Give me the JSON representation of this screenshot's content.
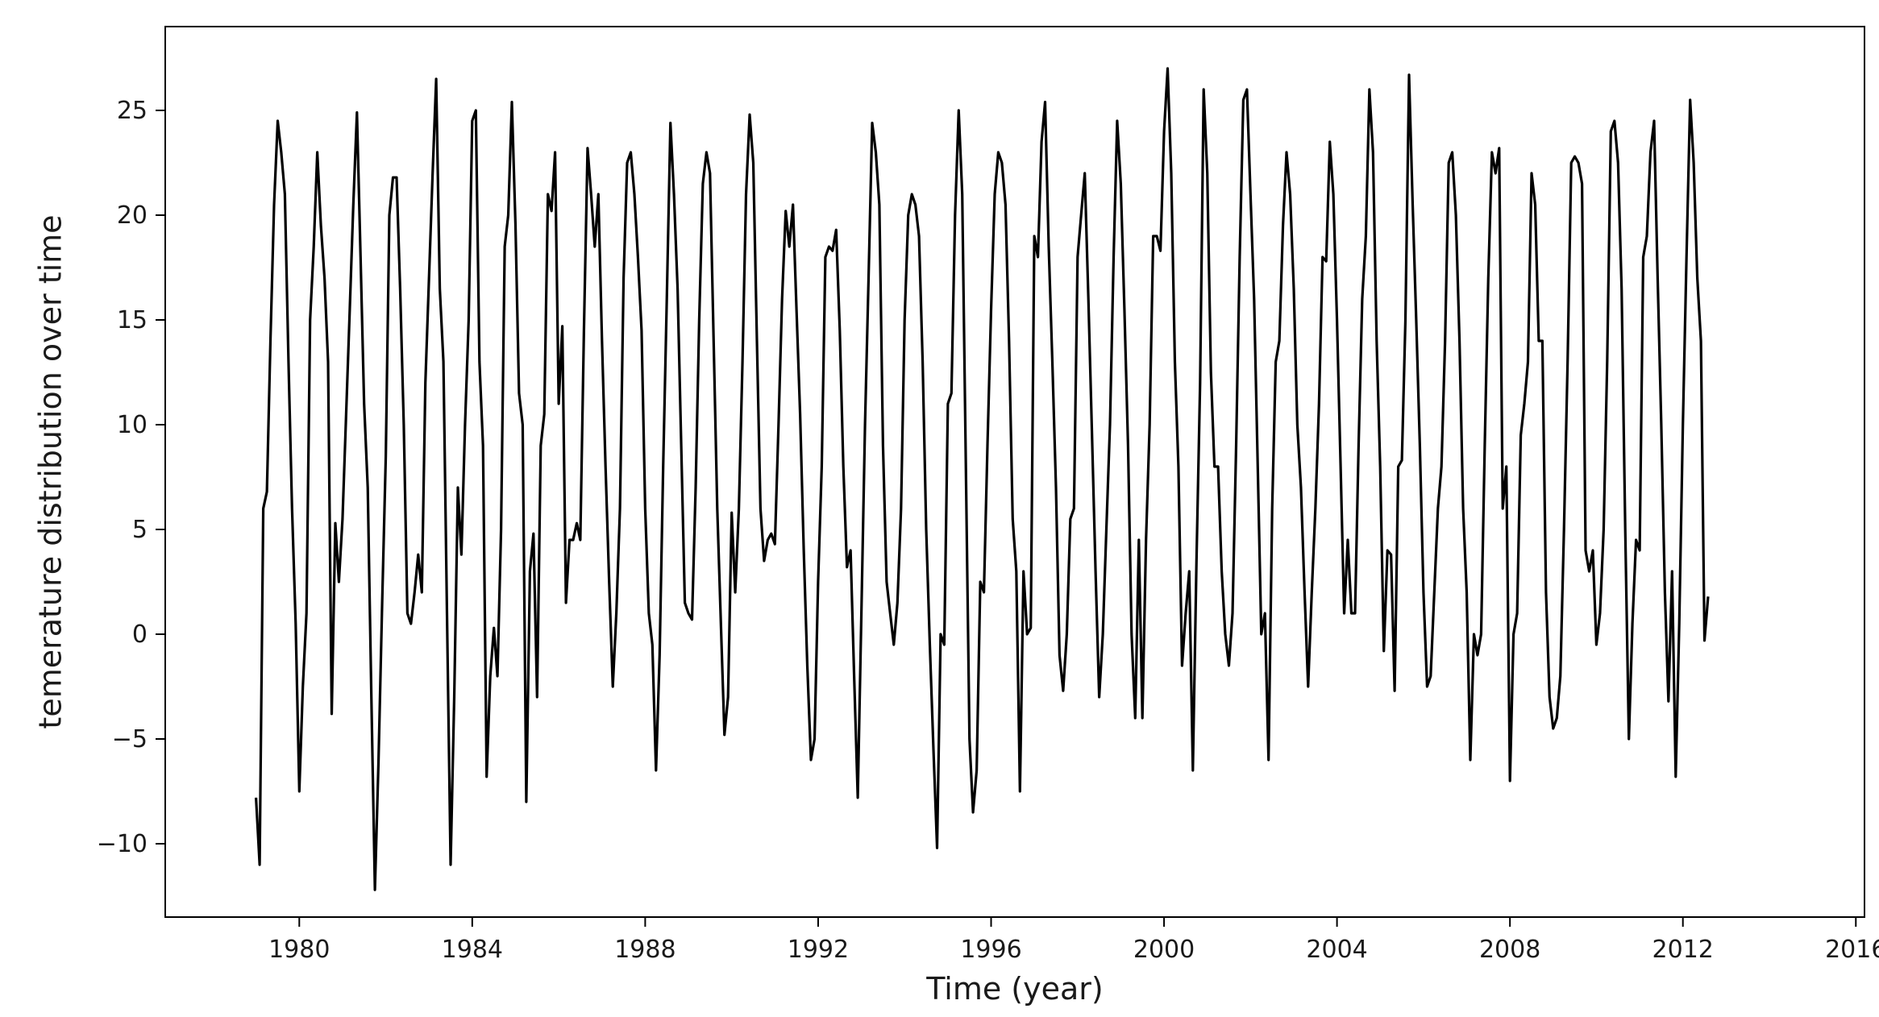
{
  "chart_data": {
    "type": "line",
    "title": "",
    "xlabel": "Time (year)",
    "ylabel": "temerature distribution over time",
    "xlim": [
      1976.9,
      2016.2
    ],
    "ylim": [
      -13.5,
      29.0
    ],
    "x_ticks": [
      1980,
      1984,
      1988,
      1992,
      1996,
      2000,
      2004,
      2008,
      2012,
      2016
    ],
    "x_tick_labels": [
      "1980",
      "1984",
      "1988",
      "1992",
      "1996",
      "2000",
      "2004",
      "2008",
      "2012",
      "2016"
    ],
    "y_ticks": [
      -10,
      -5,
      0,
      5,
      10,
      15,
      20,
      25
    ],
    "y_tick_labels": [
      "−10",
      "−5",
      "0",
      "5",
      "10",
      "15",
      "20",
      "25"
    ],
    "grid": false,
    "line_color": "#000000",
    "x_start": 1979.0,
    "x_step_months": 1,
    "series": [
      {
        "values": [
          -7.8,
          -11.0,
          6.0,
          6.8,
          14.0,
          20.5,
          24.5,
          23.0,
          21.0,
          13.0,
          6.0,
          0.5,
          -7.5,
          -2.5,
          1.0,
          15.0,
          18.5,
          23.0,
          19.5,
          17.0,
          13.0,
          -3.8,
          5.3,
          2.5,
          5.5,
          10.5,
          15.5,
          20.5,
          24.9,
          18.0,
          11.0,
          7.0,
          -3.0,
          -12.2,
          -6.0,
          1.5,
          8.5,
          20.0,
          21.8,
          21.8,
          16.5,
          10.0,
          1.0,
          0.5,
          2.0,
          3.8,
          2.0,
          12.0,
          17.0,
          22.0,
          26.5,
          16.5,
          13.0,
          1.0,
          -11.0,
          -3.0,
          7.0,
          3.8,
          10.0,
          15.0,
          24.5,
          25.0,
          13.0,
          9.0,
          -6.8,
          -2.0,
          0.3,
          -2.0,
          5.0,
          18.5,
          20.0,
          25.4,
          19.5,
          11.5,
          10.0,
          -8.0,
          3.0,
          4.8,
          -3.0,
          9.0,
          10.5,
          21.0,
          20.2,
          23.0,
          11.0,
          14.7,
          1.5,
          4.5,
          4.5,
          5.3,
          4.5,
          14.5,
          23.2,
          21.0,
          18.5,
          21.0,
          14.0,
          8.0,
          2.5,
          -2.5,
          1.0,
          6.0,
          17.0,
          22.5,
          23.0,
          21.0,
          18.0,
          14.5,
          6.0,
          1.0,
          -0.5,
          -6.5,
          -1.0,
          8.0,
          16.0,
          24.4,
          21.0,
          16.5,
          9.0,
          1.5,
          1.0,
          0.7,
          7.0,
          15.0,
          21.5,
          23.0,
          22.0,
          14.0,
          6.0,
          0.5,
          -4.8,
          -3.0,
          5.8,
          2.0,
          6.0,
          13.0,
          21.0,
          24.8,
          22.5,
          14.0,
          6.0,
          3.5,
          4.5,
          4.8,
          4.3,
          10.0,
          16.0,
          20.2,
          18.5,
          20.5,
          15.5,
          10.5,
          4.0,
          -1.5,
          -6.0,
          -5.0,
          2.5,
          8.0,
          18.0,
          18.5,
          18.3,
          19.3,
          14.5,
          8.0,
          3.2,
          4.0,
          -2.0,
          -7.8,
          1.0,
          10.0,
          17.0,
          24.4,
          23.0,
          20.5,
          9.0,
          2.5,
          1.0,
          -0.5,
          1.5,
          6.0,
          15.0,
          20.0,
          21.0,
          20.5,
          19.0,
          13.0,
          5.0,
          -0.5,
          -5.5,
          -10.2,
          0.0,
          -0.5,
          11.0,
          11.5,
          20.0,
          25.0,
          21.0,
          8.0,
          -5.0,
          -8.5,
          -6.5,
          2.5,
          2.0,
          9.0,
          15.5,
          21.0,
          23.0,
          22.5,
          20.5,
          14.0,
          5.5,
          3.0,
          -7.5,
          3.0,
          0.0,
          0.3,
          19.0,
          18.0,
          23.5,
          25.4,
          18.5,
          13.0,
          7.0,
          -1.0,
          -2.7,
          0.0,
          5.5,
          6.0,
          18.0,
          20.0,
          22.0,
          16.0,
          9.5,
          3.0,
          -3.0,
          0.0,
          5.0,
          10.0,
          18.0,
          24.5,
          21.5,
          15.5,
          9.0,
          0.0,
          -4.0,
          4.5,
          -4.0,
          4.5,
          10.0,
          19.0,
          19.0,
          18.3,
          24.0,
          27.0,
          22.0,
          13.0,
          8.0,
          -1.5,
          1.0,
          3.0,
          -6.5,
          3.5,
          12.0,
          26.0,
          22.0,
          12.5,
          8.0,
          8.0,
          3.0,
          0.0,
          -1.5,
          1.0,
          9.0,
          18.0,
          25.5,
          26.0,
          21.0,
          16.0,
          8.0,
          0.0,
          1.0,
          -6.0,
          6.0,
          13.0,
          14.0,
          19.5,
          23.0,
          21.0,
          16.5,
          10.0,
          7.0,
          2.0,
          -2.5,
          2.0,
          6.0,
          11.0,
          18.0,
          17.8,
          23.5,
          21.0,
          15.0,
          8.0,
          1.0,
          4.5,
          1.0,
          1.0,
          9.0,
          16.0,
          19.0,
          26.0,
          23.0,
          14.0,
          8.0,
          -0.8,
          4.0,
          3.8,
          -2.7,
          8.0,
          8.3,
          15.0,
          26.7,
          20.5,
          15.0,
          9.0,
          2.0,
          -2.5,
          -2.0,
          2.0,
          6.0,
          8.0,
          14.0,
          22.5,
          23.0,
          20.0,
          14.0,
          6.0,
          2.0,
          -6.0,
          0.0,
          -1.0,
          0.0,
          9.0,
          17.0,
          23.0,
          22.0,
          23.2,
          6.0,
          8.0,
          -7.0,
          0.0,
          1.0,
          9.5,
          11.0,
          13.0,
          22.0,
          20.5,
          14.0,
          14.0,
          2.0,
          -3.0,
          -4.5,
          -4.0,
          -2.0,
          5.0,
          13.0,
          22.5,
          22.8,
          22.5,
          21.5,
          4.0,
          3.0,
          4.0,
          -0.5,
          1.0,
          5.0,
          13.0,
          24.0,
          24.5,
          22.5,
          16.5,
          5.0,
          -5.0,
          0.5,
          4.5,
          4.0,
          18.0,
          19.0,
          23.0,
          24.5,
          17.0,
          10.0,
          2.0,
          -3.2,
          3.0,
          -6.8,
          0.5,
          10.0,
          18.0,
          25.5,
          22.5,
          17.0,
          14.0,
          -0.3,
          1.8
        ]
      }
    ]
  }
}
